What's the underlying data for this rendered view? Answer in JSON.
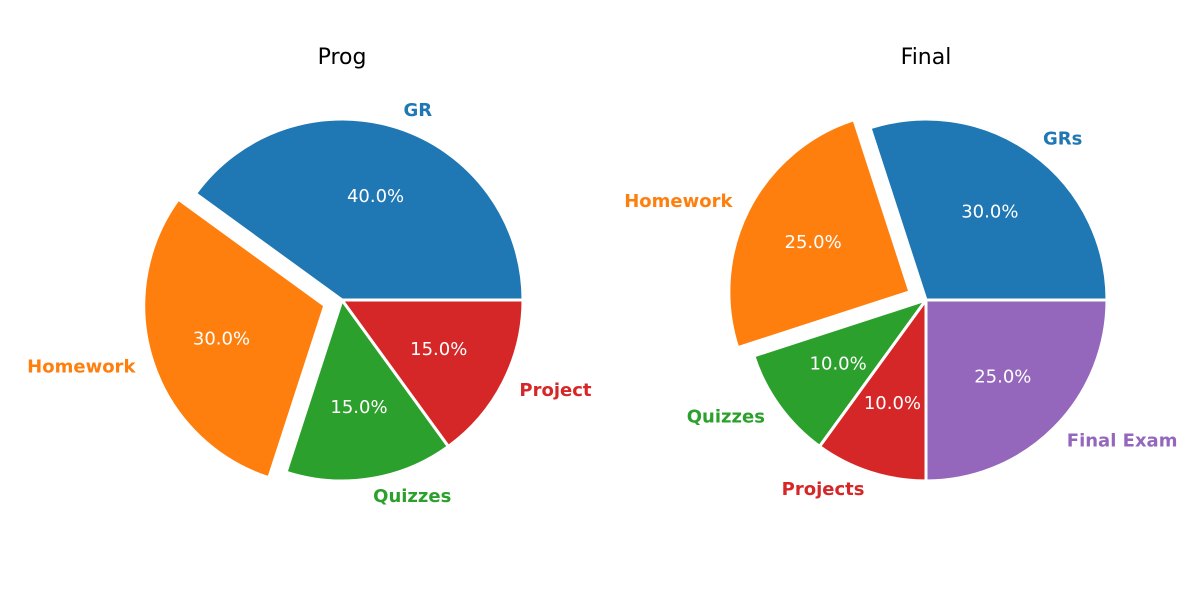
{
  "chart_data": [
    {
      "type": "pie",
      "title": "Prog",
      "slices": [
        {
          "label": "GR",
          "value": 40.0,
          "pct_text": "40.0%",
          "color": "#1f77b4",
          "exploded": false
        },
        {
          "label": "Homework",
          "value": 30.0,
          "pct_text": "30.0%",
          "color": "#ff7f0e",
          "exploded": true
        },
        {
          "label": "Quizzes",
          "value": 15.0,
          "pct_text": "15.0%",
          "color": "#2ca02c",
          "exploded": false
        },
        {
          "label": "Project",
          "value": 15.0,
          "pct_text": "15.0%",
          "color": "#d62728",
          "exploded": false
        }
      ]
    },
    {
      "type": "pie",
      "title": "Final",
      "slices": [
        {
          "label": "GRs",
          "value": 30.0,
          "pct_text": "30.0%",
          "color": "#1f77b4",
          "exploded": false
        },
        {
          "label": "Homework",
          "value": 25.0,
          "pct_text": "25.0%",
          "color": "#ff7f0e",
          "exploded": true
        },
        {
          "label": "Quizzes",
          "value": 10.0,
          "pct_text": "10.0%",
          "color": "#2ca02c",
          "exploded": false
        },
        {
          "label": "Projects",
          "value": 10.0,
          "pct_text": "10.0%",
          "color": "#d62728",
          "exploded": false
        },
        {
          "label": "Final Exam",
          "value": 25.0,
          "pct_text": "25.0%",
          "color": "#9467bd",
          "exploded": false
        }
      ]
    }
  ]
}
